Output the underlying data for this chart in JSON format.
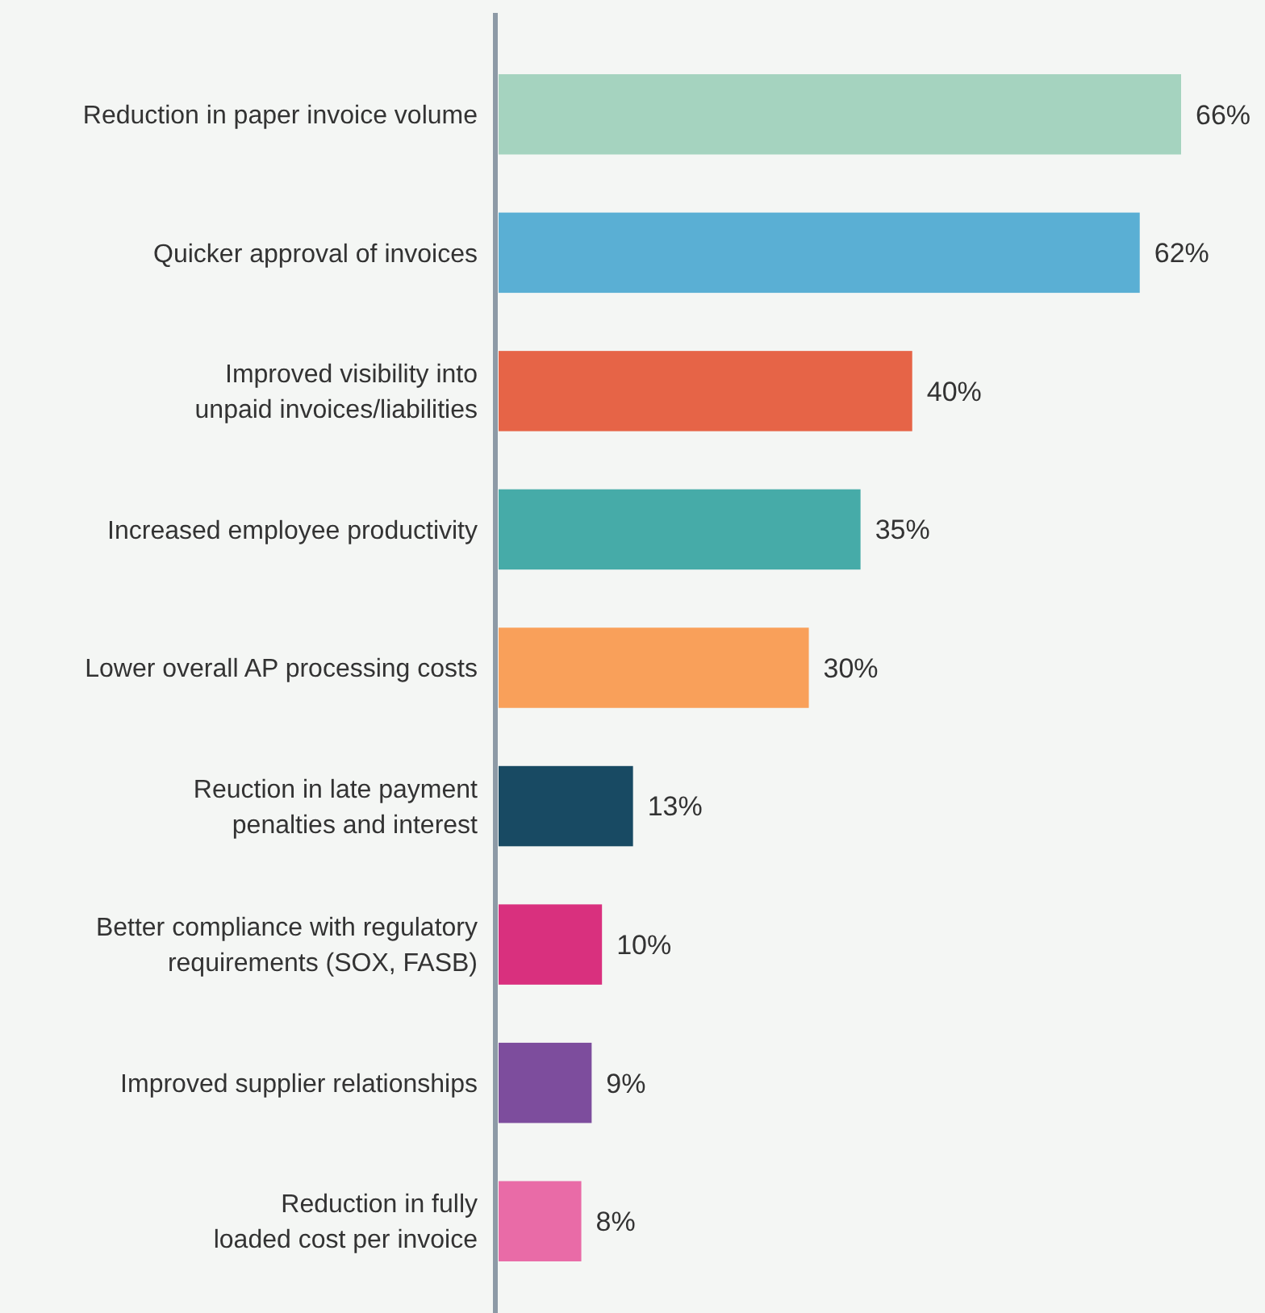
{
  "chart_data": {
    "type": "bar",
    "orientation": "horizontal",
    "data_labels": true,
    "categories": [
      "Reduction in paper invoice volume",
      "Quicker approval of invoices",
      "Improved visibility into unpaid invoices/liabilities",
      "Increased employee productivity",
      "Lower overall AP processing costs",
      "Reuction in late payment penalties and interest",
      "Better compliance with regulatory requirements (SOX, FASB)",
      "Improved supplier relationships",
      "Reduction in fully loaded cost per invoice"
    ],
    "values": [
      66,
      62,
      40,
      35,
      30,
      13,
      10,
      9,
      8
    ],
    "colors": [
      "#a5d3bf",
      "#5aafd4",
      "#e66447",
      "#46aba8",
      "#f9a05a",
      "#184a63",
      "#d9307e",
      "#7d4d9d",
      "#e96ba7"
    ],
    "value_labels": [
      "66%",
      "62%",
      "40%",
      "35%",
      "30%",
      "13%",
      "10%",
      "9%",
      "8%"
    ]
  }
}
